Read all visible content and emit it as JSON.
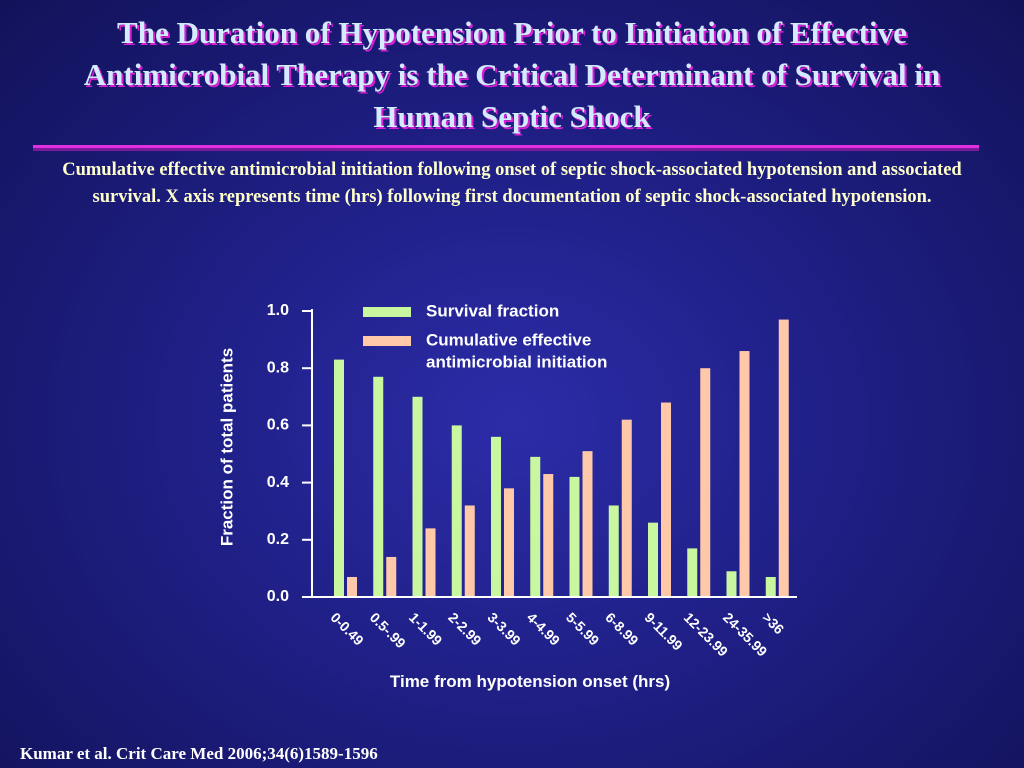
{
  "slide": {
    "title": "The Duration of Hypotension Prior to Initiation of Effective Antimicrobial Therapy is the Critical Determinant of Survival in Human Septic Shock",
    "subtitle": "Cumulative effective antimicrobial initiation following onset of septic shock-associated hypotension and associated survival.  X axis represents time (hrs) following first documentation of septic shock-associated hypotension.",
    "citation": "Kumar et al. Crit Care Med 2006;34(6)1589-1596"
  },
  "colors": {
    "survival": "#c8f7a0",
    "cumulative": "#ffc8a8",
    "axis": "#ffffff"
  },
  "chart_data": {
    "type": "bar",
    "title": "",
    "xlabel": "Time from hypotension onset (hrs)",
    "ylabel": "Fraction of total patients",
    "ylim": [
      0,
      1.0
    ],
    "yticks": [
      0.0,
      0.2,
      0.4,
      0.6,
      0.8,
      1.0
    ],
    "ytick_labels": [
      "0.0",
      "0.2",
      "0.4",
      "0.6",
      "0.8",
      "1.0"
    ],
    "grid": false,
    "legend_position": "top-right",
    "categories": [
      "0-0.49",
      "0.5-.99",
      "1-1.99",
      "2-2.99",
      "3-3.99",
      "4-4.99",
      "5-5.99",
      "6-8.99",
      "9-11.99",
      "12-23.99",
      "24-35.99",
      ">36"
    ],
    "series": [
      {
        "name": "Survival fraction",
        "legend_lines": [
          "Survival fraction"
        ],
        "values": [
          0.83,
          0.77,
          0.7,
          0.6,
          0.56,
          0.49,
          0.42,
          0.32,
          0.26,
          0.17,
          0.09,
          0.07
        ]
      },
      {
        "name": "Cumulative effective antimicrobial initiation",
        "legend_lines": [
          "Cumulative effective",
          "antimicrobial initiation"
        ],
        "values": [
          0.07,
          0.14,
          0.24,
          0.32,
          0.38,
          0.43,
          0.51,
          0.62,
          0.68,
          0.8,
          0.86,
          0.97
        ]
      }
    ]
  }
}
